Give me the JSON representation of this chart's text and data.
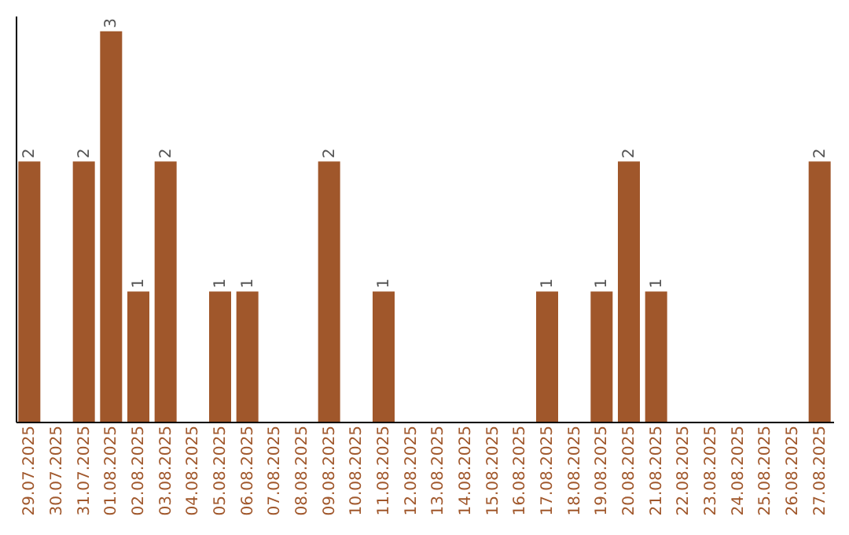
{
  "chart_data": {
    "type": "bar",
    "categories": [
      "29.07.2025",
      "30.07.2025",
      "31.07.2025",
      "01.08.2025",
      "02.08.2025",
      "03.08.2025",
      "04.08.2025",
      "05.08.2025",
      "06.08.2025",
      "07.08.2025",
      "08.08.2025",
      "09.08.2025",
      "10.08.2025",
      "11.08.2025",
      "12.08.2025",
      "13.08.2025",
      "14.08.2025",
      "15.08.2025",
      "16.08.2025",
      "17.08.2025",
      "18.08.2025",
      "19.08.2025",
      "20.08.2025",
      "21.08.2025",
      "22.08.2025",
      "23.08.2025",
      "24.08.2025",
      "25.08.2025",
      "26.08.2025",
      "27.08.2025"
    ],
    "values": [
      2,
      0,
      2,
      3,
      1,
      2,
      0,
      1,
      1,
      0,
      0,
      2,
      0,
      1,
      0,
      0,
      0,
      0,
      0,
      1,
      0,
      1,
      2,
      1,
      0,
      0,
      0,
      0,
      0,
      2
    ],
    "value_labels": [
      "2",
      null,
      "2",
      "3",
      "1",
      "2",
      null,
      "1",
      "1",
      null,
      null,
      "2",
      null,
      "1",
      null,
      null,
      null,
      null,
      null,
      "1",
      null,
      "1",
      "2",
      "1",
      null,
      null,
      null,
      null,
      null,
      "2"
    ],
    "color": "#a0572b",
    "tick_labels": "x"
  }
}
